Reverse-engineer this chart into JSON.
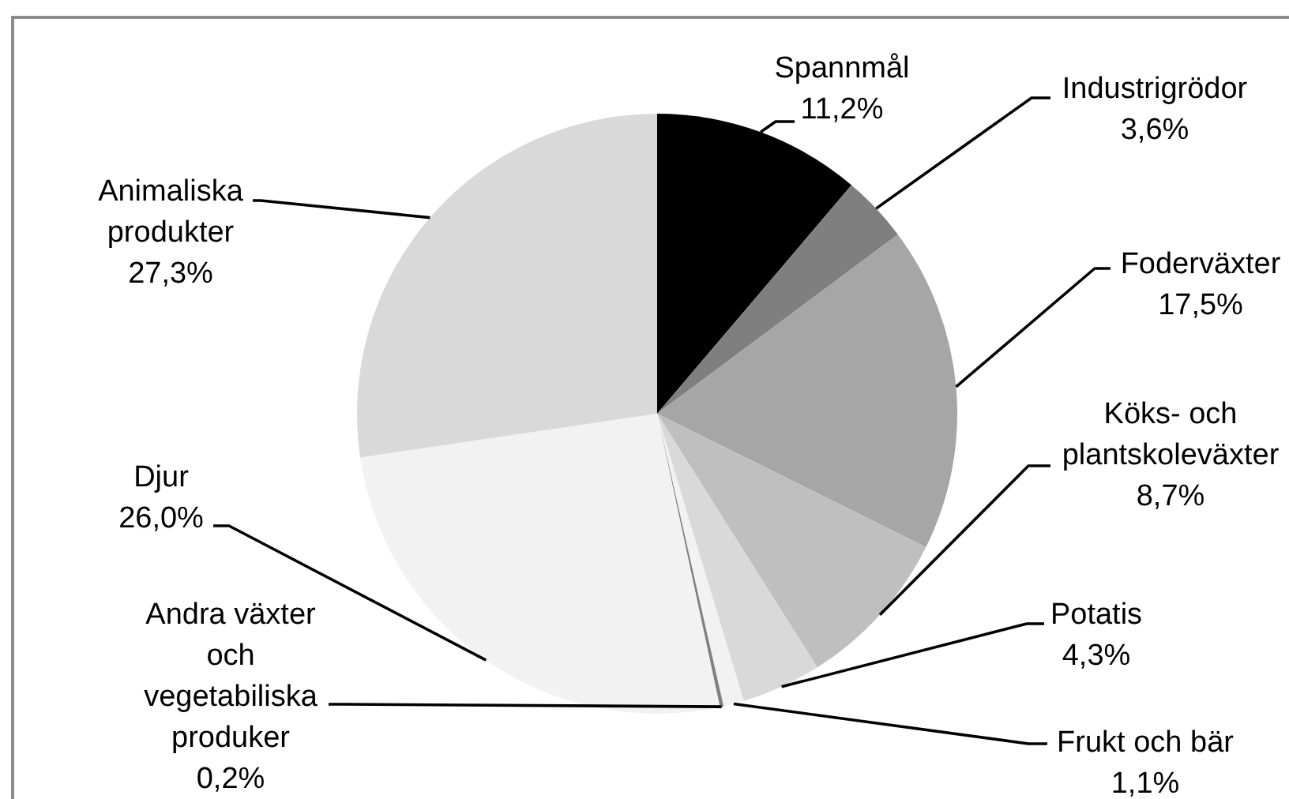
{
  "chart_data": {
    "type": "pie",
    "categories": [
      "Spannmål",
      "Industrigrödor",
      "Foderväxter",
      "Köks- och plantskoleväxter",
      "Potatis",
      "Frukt och bär",
      "Andra växter och vegetabiliska produker",
      "Djur",
      "Animaliska produkter"
    ],
    "values": [
      11.2,
      3.6,
      17.5,
      8.7,
      4.3,
      1.1,
      0.2,
      26.0,
      27.3
    ],
    "colors": [
      "#000000",
      "#7f7f7f",
      "#a6a6a6",
      "#bfbfbf",
      "#d9d9d9",
      "#f2f2f2",
      "#808080",
      "#f2f2f2",
      "#d9d9d9"
    ],
    "value_labels": [
      "11,2%",
      "3,6%",
      "17,5%",
      "8,7%",
      "4,3%",
      "1,1%",
      "0,2%",
      "26,0%",
      "27,3%"
    ]
  }
}
